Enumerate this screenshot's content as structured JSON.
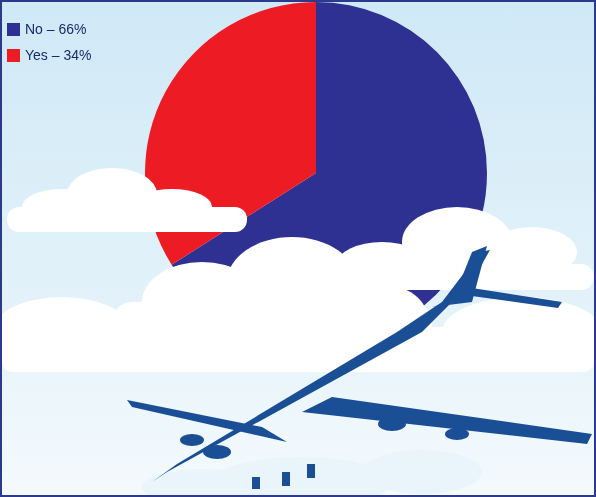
{
  "chart_data": {
    "type": "pie",
    "categories": [
      "No – 66%",
      "Yes – 34%"
    ],
    "values": [
      66,
      34
    ],
    "colors": [
      "#2e3192",
      "#ed1c24"
    ],
    "legend": "top-left"
  }
}
